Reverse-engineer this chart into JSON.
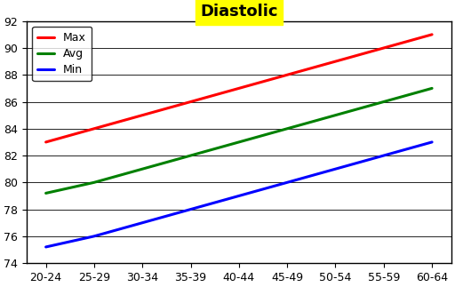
{
  "title": "Diastolic",
  "title_bg": "#ffff00",
  "categories": [
    "20-24",
    "25-29",
    "30-34",
    "35-39",
    "40-44",
    "45-49",
    "50-54",
    "55-59",
    "60-64"
  ],
  "max_values": [
    83.0,
    84.0,
    85.0,
    86.0,
    87.0,
    88.0,
    89.0,
    90.0,
    91.0
  ],
  "avg_values": [
    79.2,
    80.0,
    81.0,
    82.0,
    83.0,
    84.0,
    85.0,
    86.0,
    87.0
  ],
  "min_values": [
    75.2,
    76.0,
    77.0,
    78.0,
    79.0,
    80.0,
    81.0,
    82.0,
    83.0
  ],
  "max_color": "#ff0000",
  "avg_color": "#008000",
  "min_color": "#0000ff",
  "line_width": 2.2,
  "ylim": [
    74,
    92
  ],
  "yticks": [
    74,
    76,
    78,
    80,
    82,
    84,
    86,
    88,
    90,
    92
  ],
  "bg_color": "#ffffff",
  "grid_color": "#000000",
  "legend_labels": [
    "Max",
    "Avg",
    "Min"
  ],
  "title_fontsize": 13,
  "title_fontstyle": "bold",
  "tick_fontsize": 9,
  "legend_fontsize": 9,
  "fig_width": 5.12,
  "fig_height": 3.23,
  "dpi": 100
}
